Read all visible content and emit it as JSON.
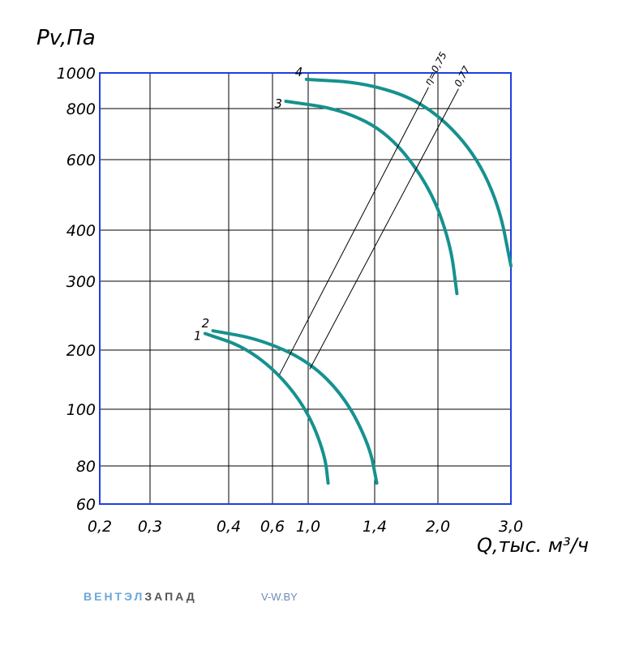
{
  "chart_data": {
    "type": "line",
    "y_title": "Pv,Па",
    "x_title": "Q,тыс. м³/ч",
    "xlim": [
      0.2,
      3.0
    ],
    "ylim": [
      60,
      1000
    ],
    "xticks": [
      {
        "value": 0.2,
        "label": "0,2"
      },
      {
        "value": 0.3,
        "label": "0,3"
      },
      {
        "value": 0.4,
        "label": "0,4"
      },
      {
        "value": 0.6,
        "label": "0,6"
      },
      {
        "value": 1.0,
        "label": "1,0"
      },
      {
        "value": 1.4,
        "label": "1,4"
      },
      {
        "value": 2.0,
        "label": "2,0"
      },
      {
        "value": 3.0,
        "label": "3,0"
      }
    ],
    "yticks": [
      60,
      80,
      100,
      200,
      300,
      400,
      600,
      800,
      1000
    ],
    "grid": true,
    "axis_color": "#1f3fe0",
    "series": [
      {
        "name": "1",
        "color": "#16918f",
        "x": [
          0.37,
          0.47,
          0.68,
          1.0,
          1.1,
          1.12
        ],
        "values": [
          224,
          205,
          159,
          99,
          84,
          71
        ]
      },
      {
        "name": "2",
        "color": "#16918f",
        "x": [
          0.38,
          0.54,
          1.0,
          1.22,
          1.37,
          1.42
        ],
        "values": [
          228,
          216,
          182,
          121,
          87,
          71
        ]
      },
      {
        "name": "3",
        "color": "#16918f",
        "x": [
          0.75,
          1.2,
          1.54,
          1.92,
          2.17,
          2.26
        ],
        "values": [
          841,
          797,
          702,
          524,
          375,
          282
        ]
      },
      {
        "name": "4",
        "color": "#16918f",
        "x": [
          0.98,
          1.34,
          1.85,
          2.44,
          2.83,
          3.0
        ],
        "values": [
          964,
          945,
          841,
          654,
          478,
          330
        ]
      }
    ],
    "efficiency_lines": [
      {
        "name": "η=0,75",
        "color": "#000000",
        "x": [
          0.68,
          1.91
        ],
        "values": [
          159,
          918
        ]
      },
      {
        "name": "0,77",
        "color": "#000000",
        "x": [
          1.01,
          2.28
        ],
        "values": [
          168,
          909
        ]
      }
    ]
  },
  "footer": {
    "brand_light": "ВЕНТЭЛ",
    "brand_dark": "ЗАПАД",
    "site": "V-W.BY"
  }
}
